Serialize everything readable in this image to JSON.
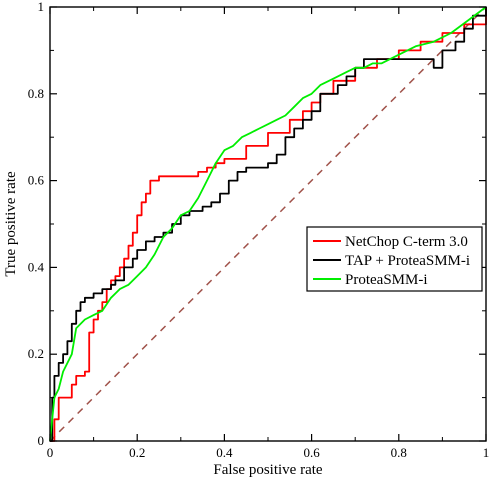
{
  "chart_data": {
    "type": "line",
    "title": "",
    "xlabel": "False positive rate",
    "ylabel": "True positive rate",
    "xlim": [
      0,
      1
    ],
    "ylim": [
      0,
      1
    ],
    "xticks": [
      "0",
      "0.2",
      "0.4",
      "0.6",
      "0.8",
      "1"
    ],
    "yticks": [
      "0",
      "0.2",
      "0.4",
      "0.6",
      "0.8",
      "1"
    ],
    "grid": false,
    "legend_position": "right",
    "series": [
      {
        "name": "NetChop C-term 3.0",
        "color": "#ff0000",
        "style": "step",
        "x": [
          0,
          0.01,
          0.02,
          0.05,
          0.06,
          0.08,
          0.09,
          0.1,
          0.11,
          0.12,
          0.13,
          0.14,
          0.15,
          0.16,
          0.17,
          0.18,
          0.19,
          0.2,
          0.21,
          0.22,
          0.23,
          0.25,
          0.26,
          0.27,
          0.3,
          0.32,
          0.34,
          0.36,
          0.38,
          0.4,
          0.45,
          0.5,
          0.55,
          0.58,
          0.6,
          0.62,
          0.65,
          0.7,
          0.75,
          0.8,
          0.85,
          0.9,
          0.95,
          1.0
        ],
        "y": [
          0,
          0.05,
          0.1,
          0.13,
          0.15,
          0.16,
          0.25,
          0.28,
          0.3,
          0.32,
          0.35,
          0.37,
          0.38,
          0.4,
          0.42,
          0.45,
          0.48,
          0.52,
          0.55,
          0.57,
          0.6,
          0.61,
          0.61,
          0.61,
          0.61,
          0.61,
          0.62,
          0.63,
          0.64,
          0.65,
          0.68,
          0.71,
          0.74,
          0.76,
          0.78,
          0.8,
          0.83,
          0.86,
          0.88,
          0.9,
          0.92,
          0.94,
          0.96,
          1.0
        ]
      },
      {
        "name": "TAP + ProteaSMM-i",
        "color": "#000000",
        "style": "step",
        "x": [
          0,
          0.005,
          0.01,
          0.02,
          0.03,
          0.04,
          0.05,
          0.06,
          0.07,
          0.08,
          0.1,
          0.12,
          0.14,
          0.15,
          0.17,
          0.19,
          0.2,
          0.22,
          0.24,
          0.26,
          0.28,
          0.3,
          0.32,
          0.34,
          0.35,
          0.37,
          0.39,
          0.41,
          0.43,
          0.45,
          0.47,
          0.5,
          0.52,
          0.54,
          0.56,
          0.58,
          0.6,
          0.62,
          0.64,
          0.66,
          0.68,
          0.7,
          0.72,
          0.75,
          0.8,
          0.85,
          0.88,
          0.9,
          0.93,
          0.95,
          0.97,
          1.0
        ],
        "y": [
          0,
          0.1,
          0.15,
          0.18,
          0.2,
          0.23,
          0.27,
          0.3,
          0.32,
          0.33,
          0.34,
          0.35,
          0.36,
          0.37,
          0.4,
          0.42,
          0.44,
          0.46,
          0.47,
          0.48,
          0.5,
          0.52,
          0.53,
          0.53,
          0.54,
          0.55,
          0.57,
          0.6,
          0.62,
          0.63,
          0.63,
          0.64,
          0.66,
          0.7,
          0.72,
          0.74,
          0.76,
          0.8,
          0.8,
          0.82,
          0.84,
          0.86,
          0.88,
          0.88,
          0.88,
          0.88,
          0.86,
          0.9,
          0.92,
          0.95,
          0.98,
          1.0
        ]
      },
      {
        "name": "ProteaSMM-i",
        "color": "#00ee00",
        "style": "line",
        "x": [
          0,
          0.01,
          0.02,
          0.03,
          0.05,
          0.06,
          0.08,
          0.1,
          0.12,
          0.14,
          0.16,
          0.18,
          0.2,
          0.22,
          0.24,
          0.26,
          0.28,
          0.3,
          0.32,
          0.34,
          0.36,
          0.38,
          0.4,
          0.42,
          0.44,
          0.46,
          0.48,
          0.5,
          0.52,
          0.54,
          0.56,
          0.58,
          0.6,
          0.62,
          0.64,
          0.66,
          0.68,
          0.7,
          0.72,
          0.74,
          0.76,
          0.78,
          0.8,
          0.84,
          0.88,
          0.92,
          0.96,
          1.0
        ],
        "y": [
          0,
          0.1,
          0.12,
          0.16,
          0.2,
          0.26,
          0.28,
          0.29,
          0.3,
          0.33,
          0.35,
          0.36,
          0.38,
          0.4,
          0.43,
          0.47,
          0.49,
          0.52,
          0.53,
          0.56,
          0.6,
          0.64,
          0.67,
          0.68,
          0.7,
          0.71,
          0.72,
          0.73,
          0.74,
          0.75,
          0.77,
          0.79,
          0.8,
          0.82,
          0.83,
          0.84,
          0.85,
          0.86,
          0.86,
          0.87,
          0.87,
          0.88,
          0.89,
          0.91,
          0.92,
          0.94,
          0.97,
          1.0
        ]
      }
    ],
    "reference_line": {
      "x": [
        0,
        1
      ],
      "y": [
        0,
        1
      ],
      "color": "#a0524a",
      "dash": true
    }
  }
}
